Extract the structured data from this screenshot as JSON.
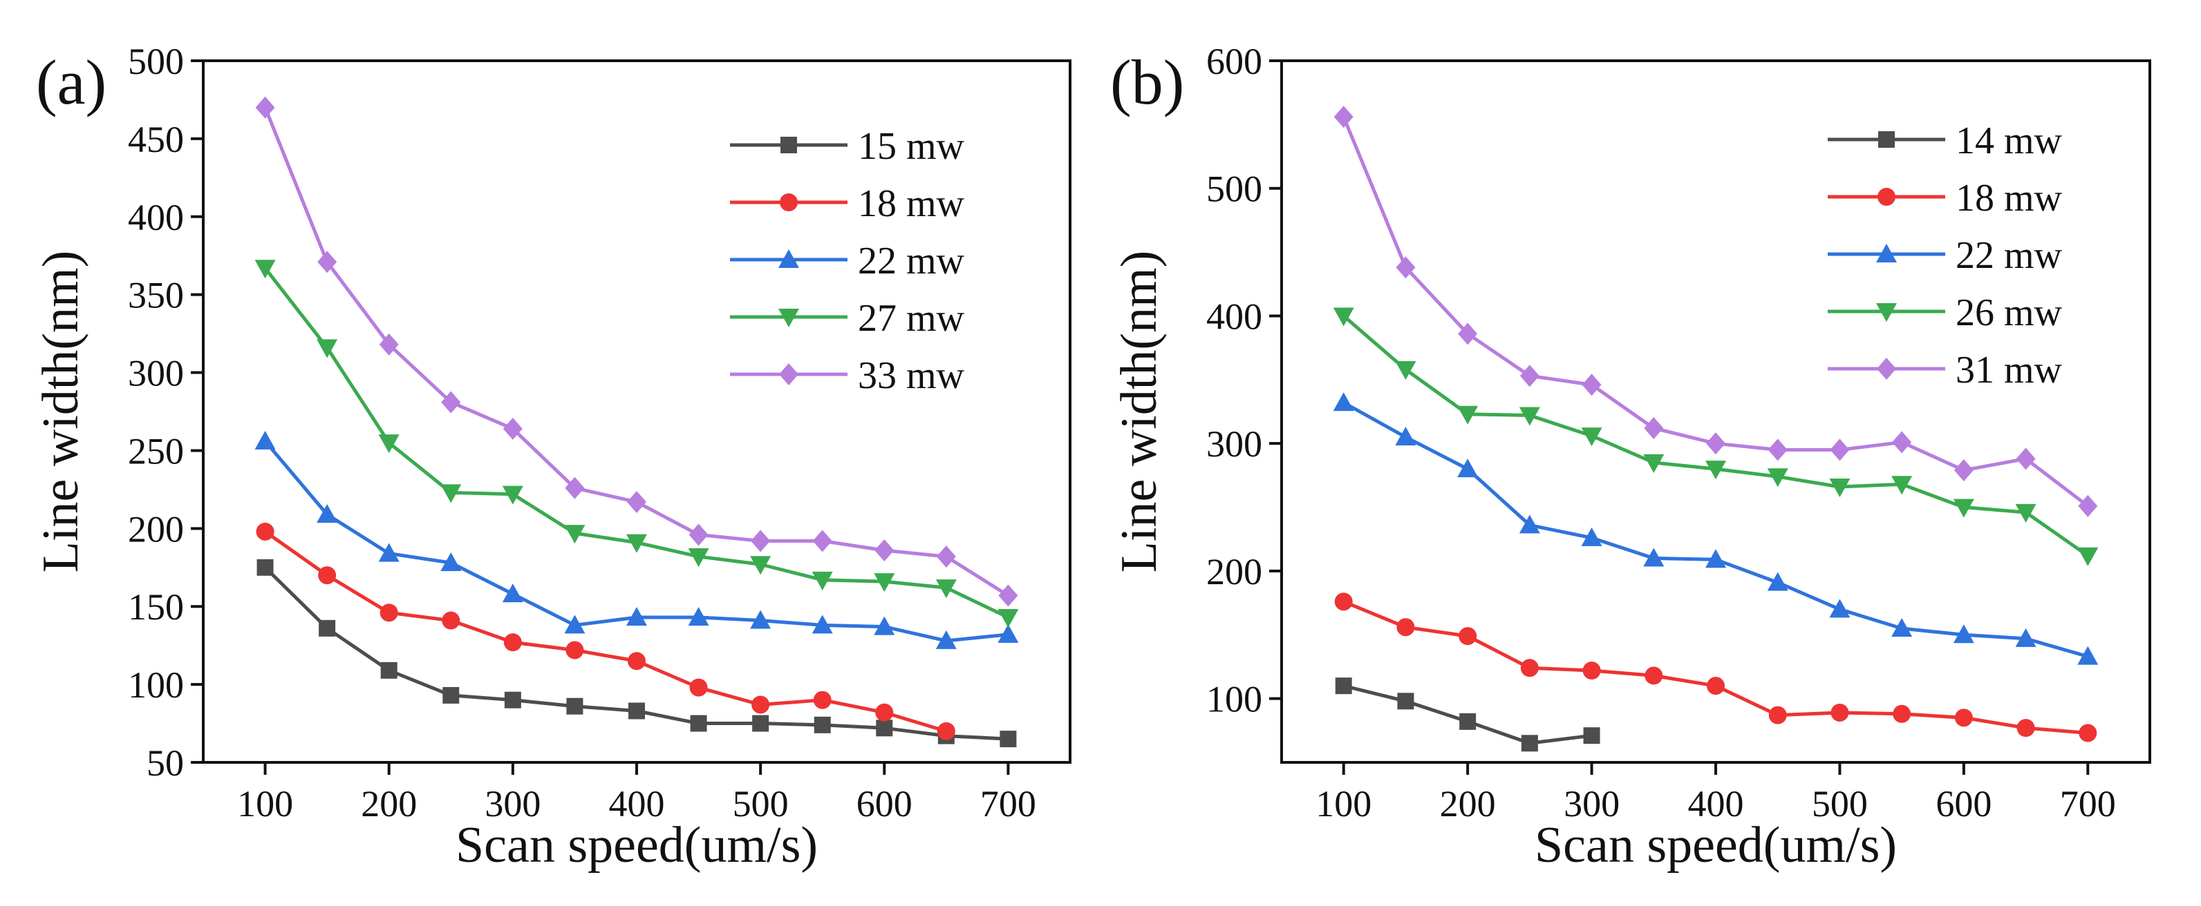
{
  "chart_data": [
    {
      "type": "line",
      "panel_label": "(a)",
      "xlabel": "Scan speed(um/s)",
      "ylabel": "Line width(nm)",
      "xlim": [
        50,
        750
      ],
      "ylim": [
        50,
        500
      ],
      "xticks": [
        100,
        200,
        300,
        400,
        500,
        600,
        700
      ],
      "yticks": [
        50,
        100,
        150,
        200,
        250,
        300,
        350,
        400,
        450,
        500
      ],
      "legend_position": "top-right",
      "series": [
        {
          "name": "15 mw",
          "color": "#4d4d4d",
          "marker": "square",
          "x": [
            100,
            150,
            200,
            250,
            300,
            350,
            400,
            450,
            500,
            550,
            600,
            650,
            700
          ],
          "y": [
            175,
            136,
            109,
            93,
            90,
            86,
            83,
            75,
            75,
            74,
            72,
            67,
            65
          ]
        },
        {
          "name": "18 mw",
          "color": "#ee3333",
          "marker": "circle",
          "x": [
            100,
            150,
            200,
            250,
            300,
            350,
            400,
            450,
            500,
            550,
            600,
            650,
            700
          ],
          "y": [
            198,
            170,
            146,
            141,
            127,
            122,
            115,
            98,
            87,
            90,
            82,
            70,
            null
          ]
        },
        {
          "name": "22 mw",
          "color": "#2f73dd",
          "marker": "triangle-up",
          "x": [
            100,
            150,
            200,
            250,
            300,
            350,
            400,
            450,
            500,
            550,
            600,
            650,
            700
          ],
          "y": [
            256,
            209,
            184,
            178,
            158,
            138,
            143,
            143,
            141,
            138,
            137,
            128,
            132
          ]
        },
        {
          "name": "27 mw",
          "color": "#3aaa4f",
          "marker": "triangle-down",
          "x": [
            100,
            150,
            200,
            250,
            300,
            350,
            400,
            450,
            500,
            550,
            600,
            650,
            700
          ],
          "y": [
            367,
            316,
            255,
            223,
            222,
            197,
            191,
            182,
            177,
            167,
            166,
            162,
            143
          ]
        },
        {
          "name": "33 mw",
          "color": "#b77ddf",
          "marker": "diamond",
          "x": [
            100,
            150,
            200,
            250,
            300,
            350,
            400,
            450,
            500,
            550,
            600,
            650,
            700
          ],
          "y": [
            470,
            371,
            318,
            281,
            264,
            226,
            217,
            196,
            192,
            192,
            186,
            182,
            157
          ]
        }
      ]
    },
    {
      "type": "line",
      "panel_label": "(b)",
      "xlabel": "Scan speed(um/s)",
      "ylabel": "Line width(nm)",
      "xlim": [
        50,
        750
      ],
      "ylim": [
        50,
        600
      ],
      "xticks": [
        100,
        200,
        300,
        400,
        500,
        600,
        700
      ],
      "yticks": [
        100,
        200,
        300,
        400,
        500,
        600
      ],
      "legend_position": "top-right",
      "series": [
        {
          "name": "14 mw",
          "color": "#4d4d4d",
          "marker": "square",
          "x": [
            100,
            150,
            200,
            250,
            300
          ],
          "y": [
            110,
            98,
            82,
            65,
            71
          ]
        },
        {
          "name": "18 mw",
          "color": "#ee3333",
          "marker": "circle",
          "x": [
            100,
            150,
            200,
            250,
            300,
            350,
            400,
            450,
            500,
            550,
            600,
            650,
            700
          ],
          "y": [
            176,
            156,
            149,
            124,
            122,
            118,
            110,
            87,
            89,
            88,
            85,
            77,
            73
          ]
        },
        {
          "name": "22 mw",
          "color": "#2f73dd",
          "marker": "triangle-up",
          "x": [
            100,
            150,
            200,
            250,
            300,
            350,
            400,
            450,
            500,
            550,
            600,
            650,
            700
          ],
          "y": [
            332,
            305,
            280,
            236,
            226,
            210,
            209,
            191,
            170,
            155,
            150,
            147,
            133
          ]
        },
        {
          "name": "26 mw",
          "color": "#3aaa4f",
          "marker": "triangle-down",
          "x": [
            100,
            150,
            200,
            250,
            300,
            350,
            400,
            450,
            500,
            550,
            600,
            650,
            700
          ],
          "y": [
            400,
            358,
            323,
            322,
            306,
            285,
            280,
            274,
            266,
            268,
            250,
            246,
            212
          ]
        },
        {
          "name": "31 mw",
          "color": "#b77ddf",
          "marker": "diamond",
          "x": [
            100,
            150,
            200,
            250,
            300,
            350,
            400,
            450,
            500,
            550,
            600,
            650,
            700
          ],
          "y": [
            556,
            438,
            386,
            353,
            346,
            312,
            300,
            295,
            295,
            301,
            279,
            288,
            251
          ]
        }
      ]
    }
  ]
}
